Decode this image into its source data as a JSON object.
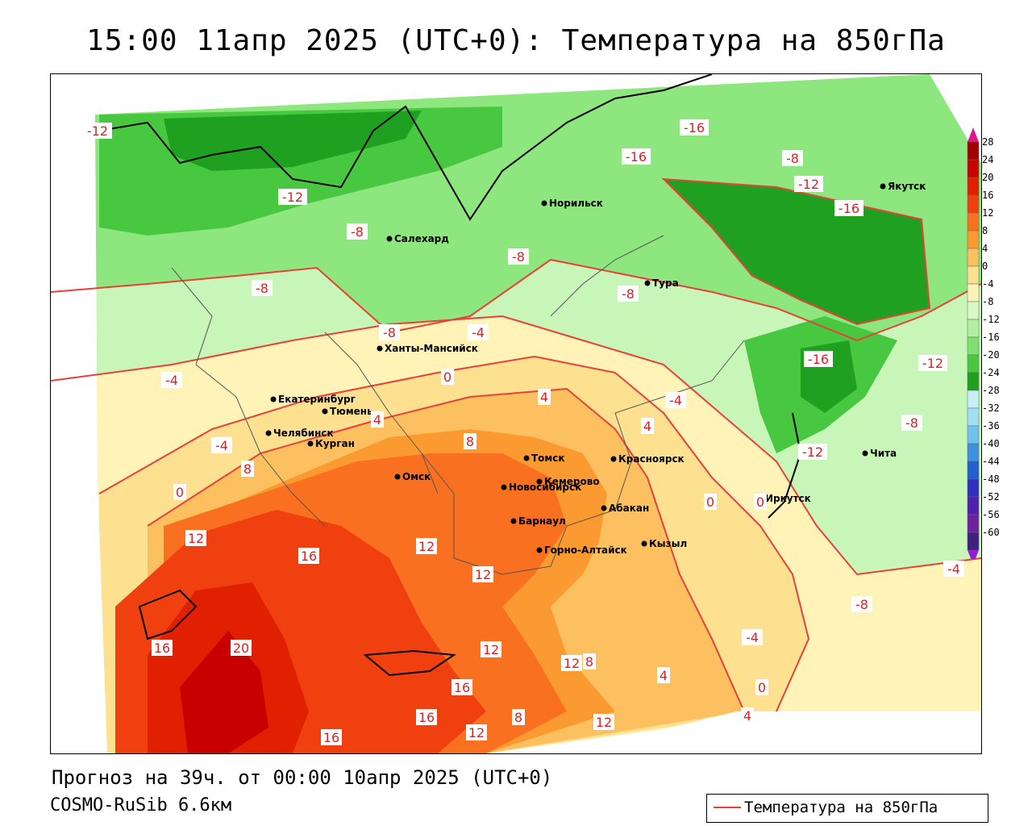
{
  "title": "15:00 11апр 2025 (UTC+0): Температура на 850гПа",
  "footer": {
    "forecast": "Прогноз на 39ч. от 00:00 10апр 2025 (UTC+0)",
    "model": "COSMO-RuSib 6.6км"
  },
  "legend": {
    "label": "Температура на 850гПа",
    "line_color": "#e8403a"
  },
  "colorbar": {
    "levels": [
      "28",
      "24",
      "20",
      "16",
      "12",
      "8",
      "4",
      "0",
      "-4",
      "-8",
      "-12",
      "-16",
      "-20",
      "-24",
      "-28",
      "-32",
      "-36",
      "-40",
      "-44",
      "-48",
      "-52",
      "-56",
      "-60"
    ],
    "colors": [
      "#a00000",
      "#c80000",
      "#e02000",
      "#f04010",
      "#f87020",
      "#fb9a30",
      "#fdc060",
      "#fde090",
      "#fff3b8",
      "#d8f8c8",
      "#b0f0a0",
      "#7ee070",
      "#48c840",
      "#20a020",
      "#c8f0f8",
      "#a0e0f0",
      "#70c0f0",
      "#4090e0",
      "#2060d0",
      "#3030c0",
      "#5020b0",
      "#7020a0",
      "#402080"
    ],
    "top_color": "#e0148c",
    "bottom_color": "#9020d0"
  },
  "cities": [
    {
      "name": "Якутск"
    },
    {
      "name": "Норильск"
    },
    {
      "name": "Салехард"
    },
    {
      "name": "Тура"
    },
    {
      "name": "Ханты-Мансийск"
    },
    {
      "name": "Екатеринбург"
    },
    {
      "name": "Тюмень"
    },
    {
      "name": "Челябинск"
    },
    {
      "name": "Курган"
    },
    {
      "name": "Омск"
    },
    {
      "name": "Новосибирск"
    },
    {
      "name": "Томск"
    },
    {
      "name": "Кемерово"
    },
    {
      "name": "Красноярск"
    },
    {
      "name": "Абакан"
    },
    {
      "name": "Барнаул"
    },
    {
      "name": "Горно-Алтайск"
    },
    {
      "name": "Кызыл"
    },
    {
      "name": "Иркутск"
    },
    {
      "name": "Чита"
    }
  ],
  "contour_labels": [
    "-12",
    "-12",
    "-12",
    "-16",
    "-16",
    "-16",
    "-8",
    "-8",
    "-8",
    "-8",
    "-8",
    "-8",
    "-4",
    "-4",
    "-4",
    "-4",
    "0",
    "0",
    "0",
    "4",
    "4",
    "8",
    "8",
    "12",
    "12",
    "16",
    "16",
    "20",
    "-4",
    "-8",
    "-12",
    "-16",
    "-12",
    "-8",
    "4",
    "12",
    "12",
    "16",
    "16",
    "12",
    "8",
    "12",
    "4",
    "0",
    "4",
    "16",
    "12",
    "8",
    "-4",
    "0"
  ]
}
